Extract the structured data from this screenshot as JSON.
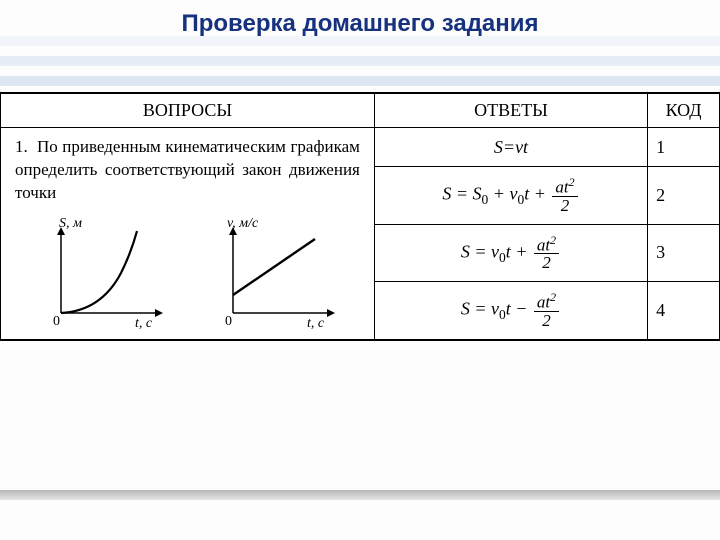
{
  "title": "Проверка домашнего задания",
  "headers": {
    "q": "ВОПРОСЫ",
    "a": "ОТВЕТЫ",
    "c": "КОД"
  },
  "question": {
    "number": "1.",
    "text": "По приведенным кинематическим графикам определить соответствующий закон движения точки"
  },
  "graphs": {
    "left": {
      "type": "curve-accel",
      "ylabel": "S, м",
      "xlabel": "t, с",
      "axis_color": "#000000",
      "line_width": 2
    },
    "right": {
      "type": "line-offset",
      "ylabel": "v, м/с",
      "xlabel": "t, с",
      "axis_color": "#000000",
      "line_width": 2
    }
  },
  "answers": [
    {
      "formula_html": "<span class='var'>S</span>=<span class='var'>vt</span>",
      "code": "1"
    },
    {
      "formula_html": "<span class='var'>S</span> = <span class='var'>S</span><sub>0</sub> + <span class='var'>v</span><sub>0</sub><span class='var'>t</span> + <span class='frac'><span class='num'><span class='var'>at</span><sup>2</sup></span><span class='den'>2</span></span>",
      "code": "2"
    },
    {
      "formula_html": "<span class='var'>S</span> = <span class='var'>v</span><sub>0</sub><span class='var'>t</span> + <span class='frac'><span class='num'><span class='var'>at</span><sup>2</sup></span><span class='den'>2</span></span>",
      "code": "3"
    },
    {
      "formula_html": "<span class='var'>S</span> = <span class='var'>v</span><sub>0</sub><span class='var'>t</span> &minus; <span class='frac'><span class='num'><span class='var'>at</span><sup>2</sup></span><span class='den'>2</span></span>",
      "code": "4"
    }
  ],
  "style": {
    "title_color": "#16317d",
    "border_color": "#000000",
    "background": "#ffffff",
    "font_body": "Times New Roman",
    "font_title": "Arial",
    "title_fontsize": 24,
    "body_fontsize": 17
  }
}
